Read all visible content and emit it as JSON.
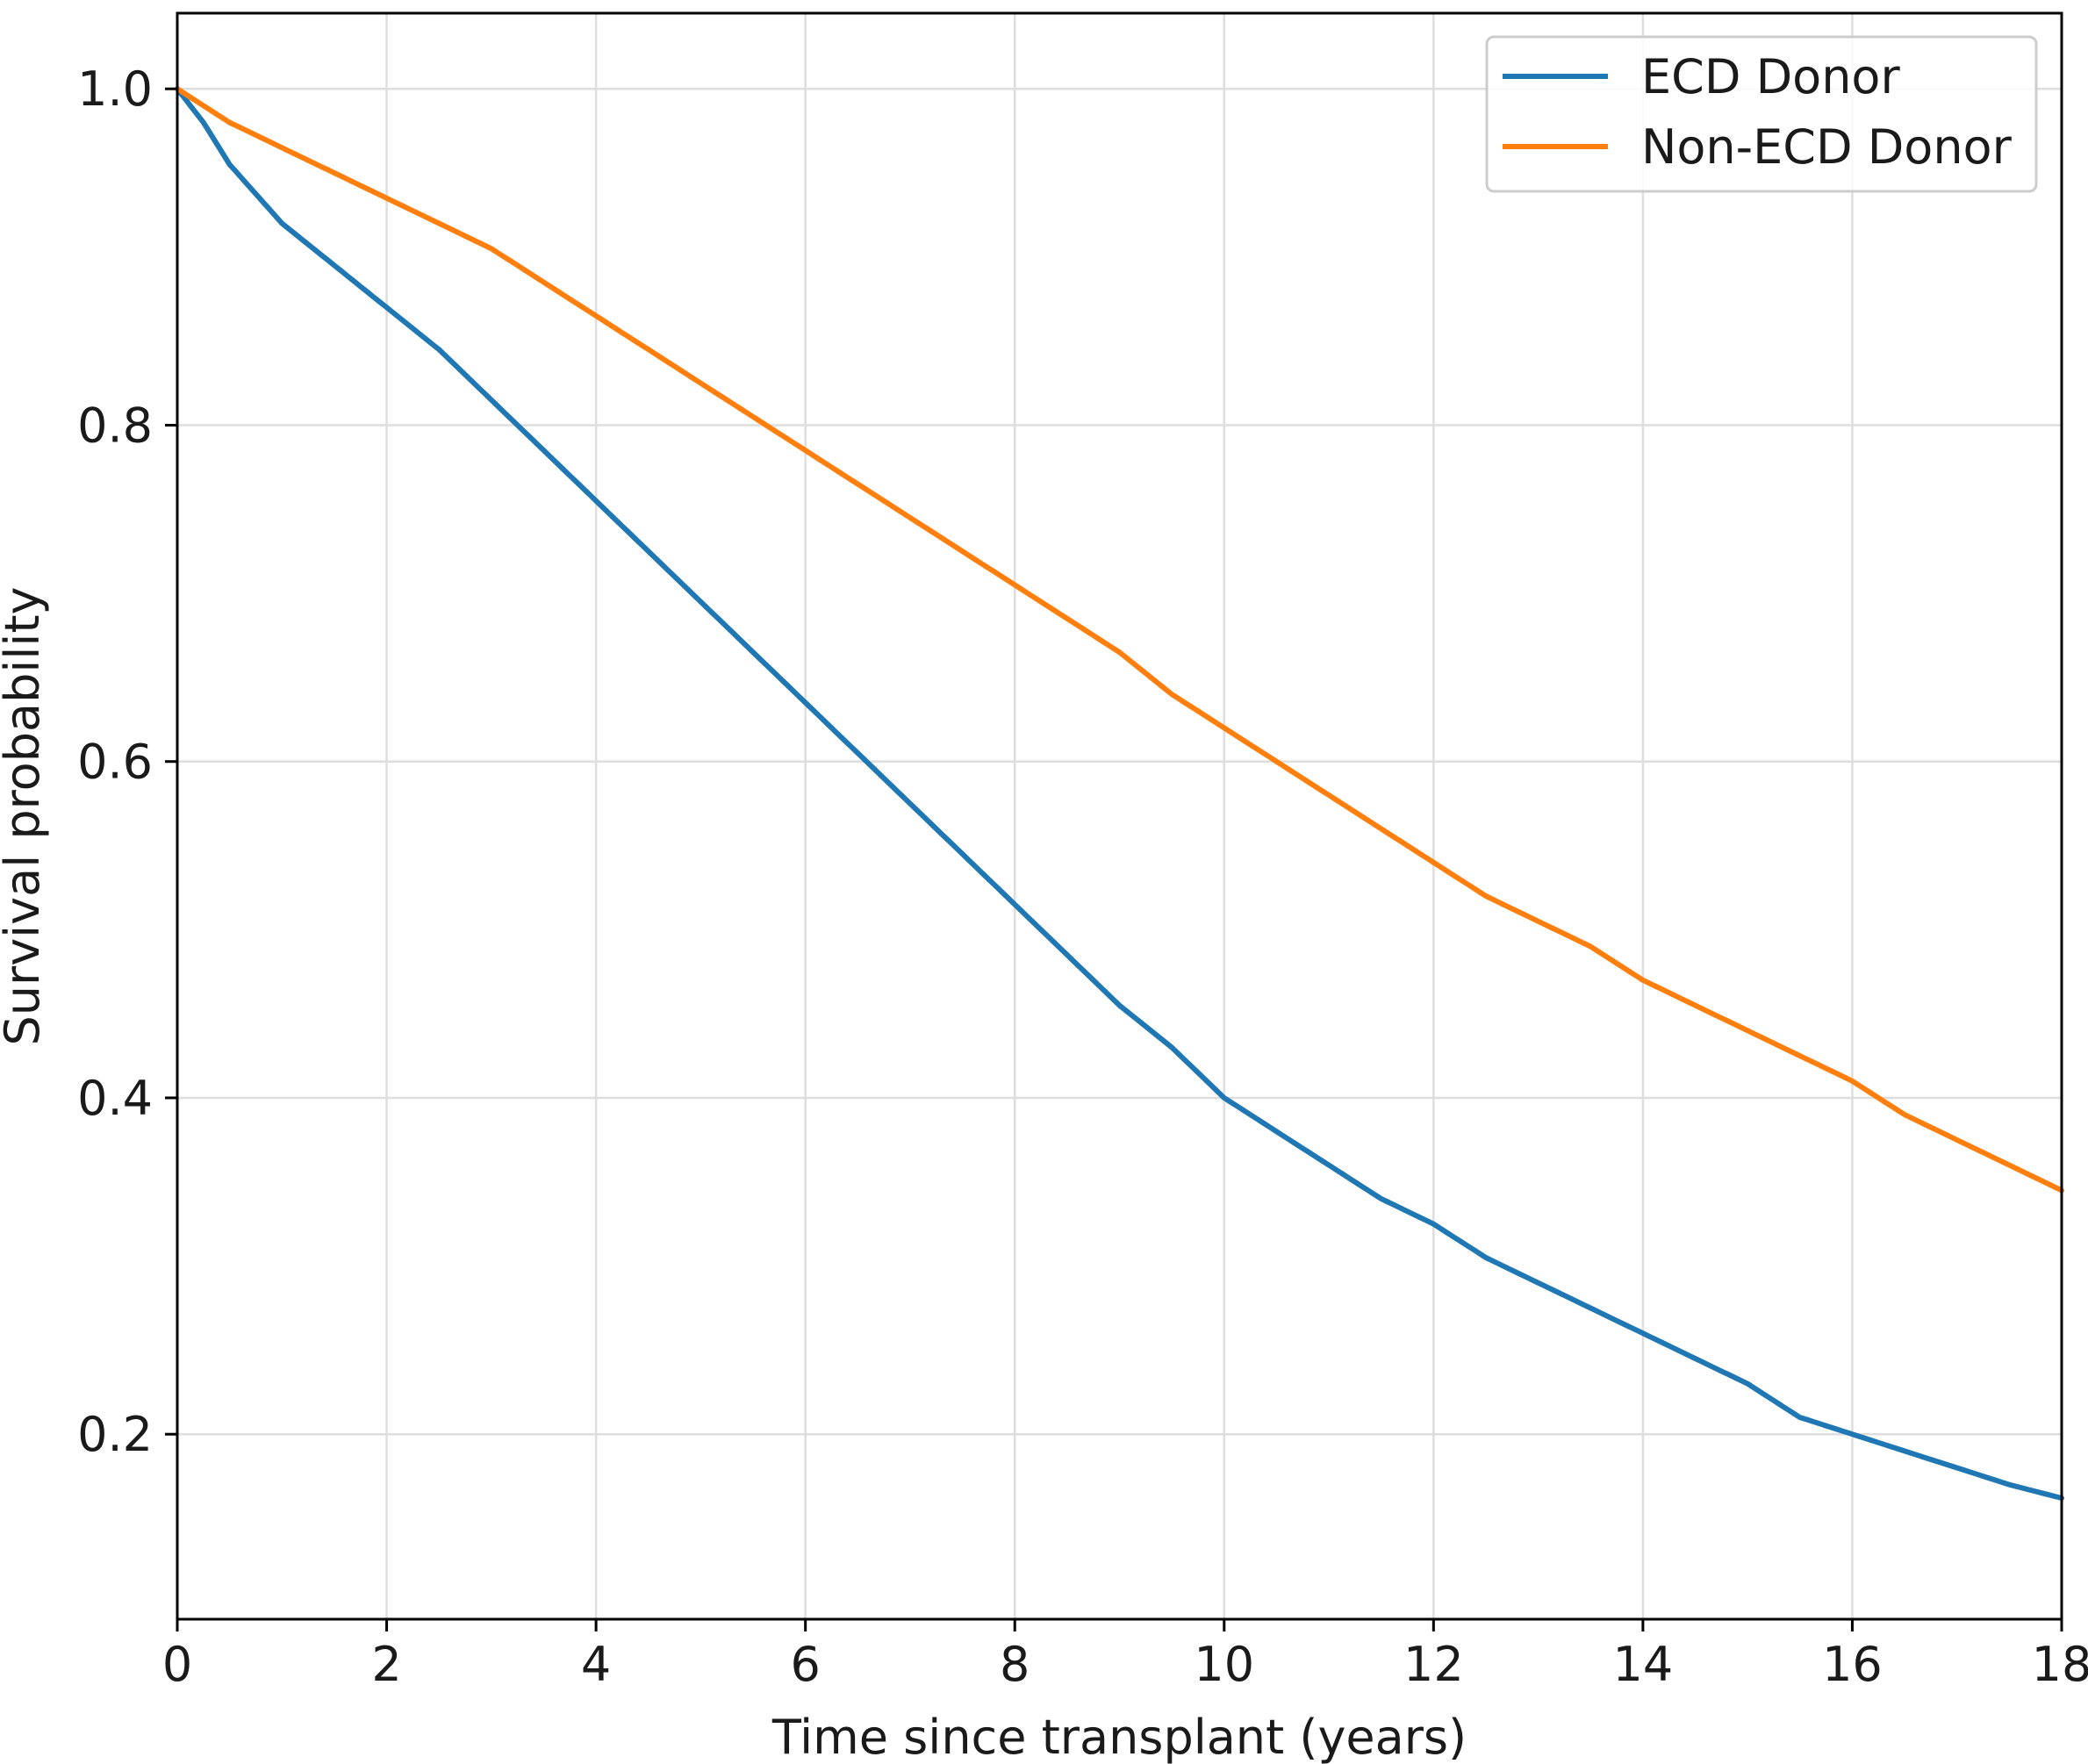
{
  "chart_data": {
    "type": "line",
    "title": "",
    "xlabel": "Time since transplant (years)",
    "ylabel": "Survival probability",
    "xlim": [
      0,
      18
    ],
    "ylim": [
      0.09,
      1.045
    ],
    "x_ticks": [
      "0",
      "2",
      "4",
      "6",
      "8",
      "10",
      "12",
      "14",
      "16",
      "18"
    ],
    "y_ticks": [
      "0.2",
      "0.4",
      "0.6",
      "0.8",
      "1.0"
    ],
    "grid": true,
    "legend_position": "top-right",
    "series": [
      {
        "name": "ECD Donor",
        "color": "#1f77b4",
        "x": [
          0,
          0.25,
          0.5,
          1,
          1.5,
          2,
          2.5,
          3,
          3.5,
          4,
          4.5,
          5,
          5.5,
          6,
          6.5,
          7,
          7.5,
          8,
          8.5,
          9,
          9.5,
          10,
          10.5,
          11,
          11.5,
          12,
          12.5,
          13,
          13.5,
          14,
          14.5,
          15,
          15.5,
          16,
          16.5,
          17,
          17.5,
          18
        ],
        "y": [
          1.0,
          0.98,
          0.955,
          0.92,
          0.895,
          0.87,
          0.845,
          0.815,
          0.785,
          0.755,
          0.725,
          0.695,
          0.665,
          0.635,
          0.605,
          0.575,
          0.545,
          0.515,
          0.485,
          0.455,
          0.43,
          0.4,
          0.38,
          0.36,
          0.34,
          0.325,
          0.305,
          0.29,
          0.275,
          0.26,
          0.245,
          0.23,
          0.21,
          0.2,
          0.19,
          0.18,
          0.17,
          0.162
        ]
      },
      {
        "name": "Non-ECD Donor",
        "color": "#ff7f0e",
        "x": [
          0,
          0.5,
          1,
          1.5,
          2,
          2.5,
          3,
          3.5,
          4,
          4.5,
          5,
          5.5,
          6,
          6.5,
          7,
          7.5,
          8,
          8.5,
          9,
          9.5,
          10,
          10.5,
          11,
          11.5,
          12,
          12.5,
          13,
          13.5,
          14,
          14.5,
          15,
          15.5,
          16,
          16.5,
          17,
          17.5,
          18
        ],
        "y": [
          1.0,
          0.98,
          0.965,
          0.95,
          0.935,
          0.92,
          0.905,
          0.885,
          0.865,
          0.845,
          0.825,
          0.805,
          0.785,
          0.765,
          0.745,
          0.725,
          0.705,
          0.685,
          0.665,
          0.64,
          0.62,
          0.6,
          0.58,
          0.56,
          0.54,
          0.52,
          0.505,
          0.49,
          0.47,
          0.455,
          0.44,
          0.425,
          0.41,
          0.39,
          0.375,
          0.36,
          0.345
        ]
      }
    ]
  }
}
